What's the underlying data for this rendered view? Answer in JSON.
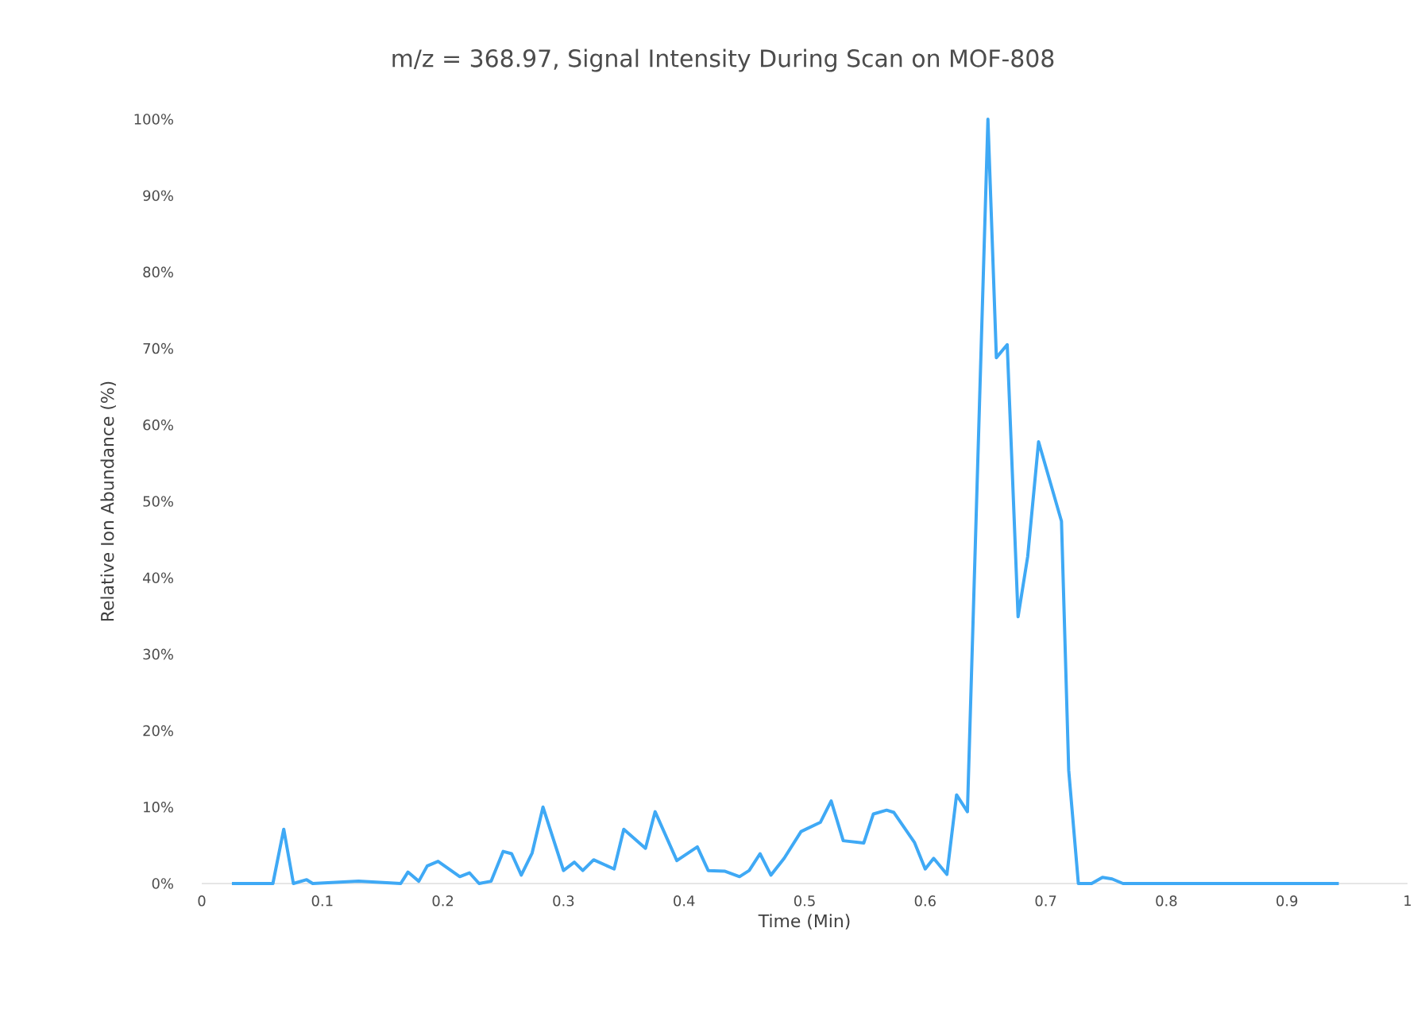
{
  "chart_data": {
    "type": "line",
    "title": "m/z = 368.97, Signal Intensity During Scan on MOF-808",
    "xlabel": "Time (Min)",
    "ylabel": "Relative Ion Abundance (%)",
    "x": [
      0.025,
      0.059,
      0.068,
      0.076,
      0.087,
      0.092,
      0.13,
      0.165,
      0.171,
      0.18,
      0.187,
      0.196,
      0.214,
      0.222,
      0.23,
      0.24,
      0.25,
      0.257,
      0.265,
      0.274,
      0.283,
      0.3,
      0.309,
      0.316,
      0.325,
      0.342,
      0.35,
      0.368,
      0.376,
      0.394,
      0.411,
      0.42,
      0.434,
      0.446,
      0.454,
      0.463,
      0.472,
      0.483,
      0.497,
      0.513,
      0.522,
      0.532,
      0.549,
      0.557,
      0.568,
      0.574,
      0.591,
      0.6,
      0.607,
      0.618,
      0.626,
      0.635,
      0.652,
      0.659,
      0.668,
      0.677,
      0.685,
      0.694,
      0.713,
      0.719,
      0.727,
      0.738,
      0.747,
      0.755,
      0.764,
      0.943
    ],
    "series": [
      {
        "color": "#3fa9f5",
        "values": [
          0,
          0,
          7.1,
          0,
          0.5,
          0,
          0.3,
          0,
          1.5,
          0.3,
          2.3,
          2.9,
          0.9,
          1.4,
          0,
          0.3,
          4.2,
          3.9,
          1.1,
          4.0,
          10.0,
          1.7,
          2.8,
          1.7,
          3.1,
          1.9,
          7.1,
          4.6,
          9.4,
          3.0,
          4.8,
          1.7,
          1.6,
          0.9,
          1.7,
          3.9,
          1.1,
          3.3,
          6.8,
          8.0,
          10.8,
          5.6,
          5.3,
          9.1,
          9.6,
          9.3,
          5.4,
          1.9,
          3.3,
          1.2,
          11.6,
          9.4,
          100,
          68.8,
          70.5,
          34.9,
          42.8,
          57.8,
          47.4,
          14.8,
          0,
          0,
          0.8,
          0.6,
          0,
          0
        ]
      }
    ],
    "xlim": [
      0,
      1
    ],
    "xticks": [
      0,
      0.1,
      0.2,
      0.3,
      0.4,
      0.5,
      0.6,
      0.7,
      0.8,
      0.9,
      1
    ],
    "ylim": [
      0,
      100
    ],
    "yticks": [
      {
        "value": 0,
        "label": "0%"
      },
      {
        "value": 10,
        "label": "10%"
      },
      {
        "value": 20,
        "label": "20%"
      },
      {
        "value": 30,
        "label": "30%"
      },
      {
        "value": 40,
        "label": "40%"
      },
      {
        "value": 50,
        "label": "50%"
      },
      {
        "value": 60,
        "label": "60%"
      },
      {
        "value": 70,
        "label": "70%"
      },
      {
        "value": 80,
        "label": "80%"
      },
      {
        "value": 90,
        "label": "90%"
      },
      {
        "value": 100,
        "label": "100%"
      }
    ],
    "grid": false,
    "marker": "none",
    "line_style": "solid"
  }
}
